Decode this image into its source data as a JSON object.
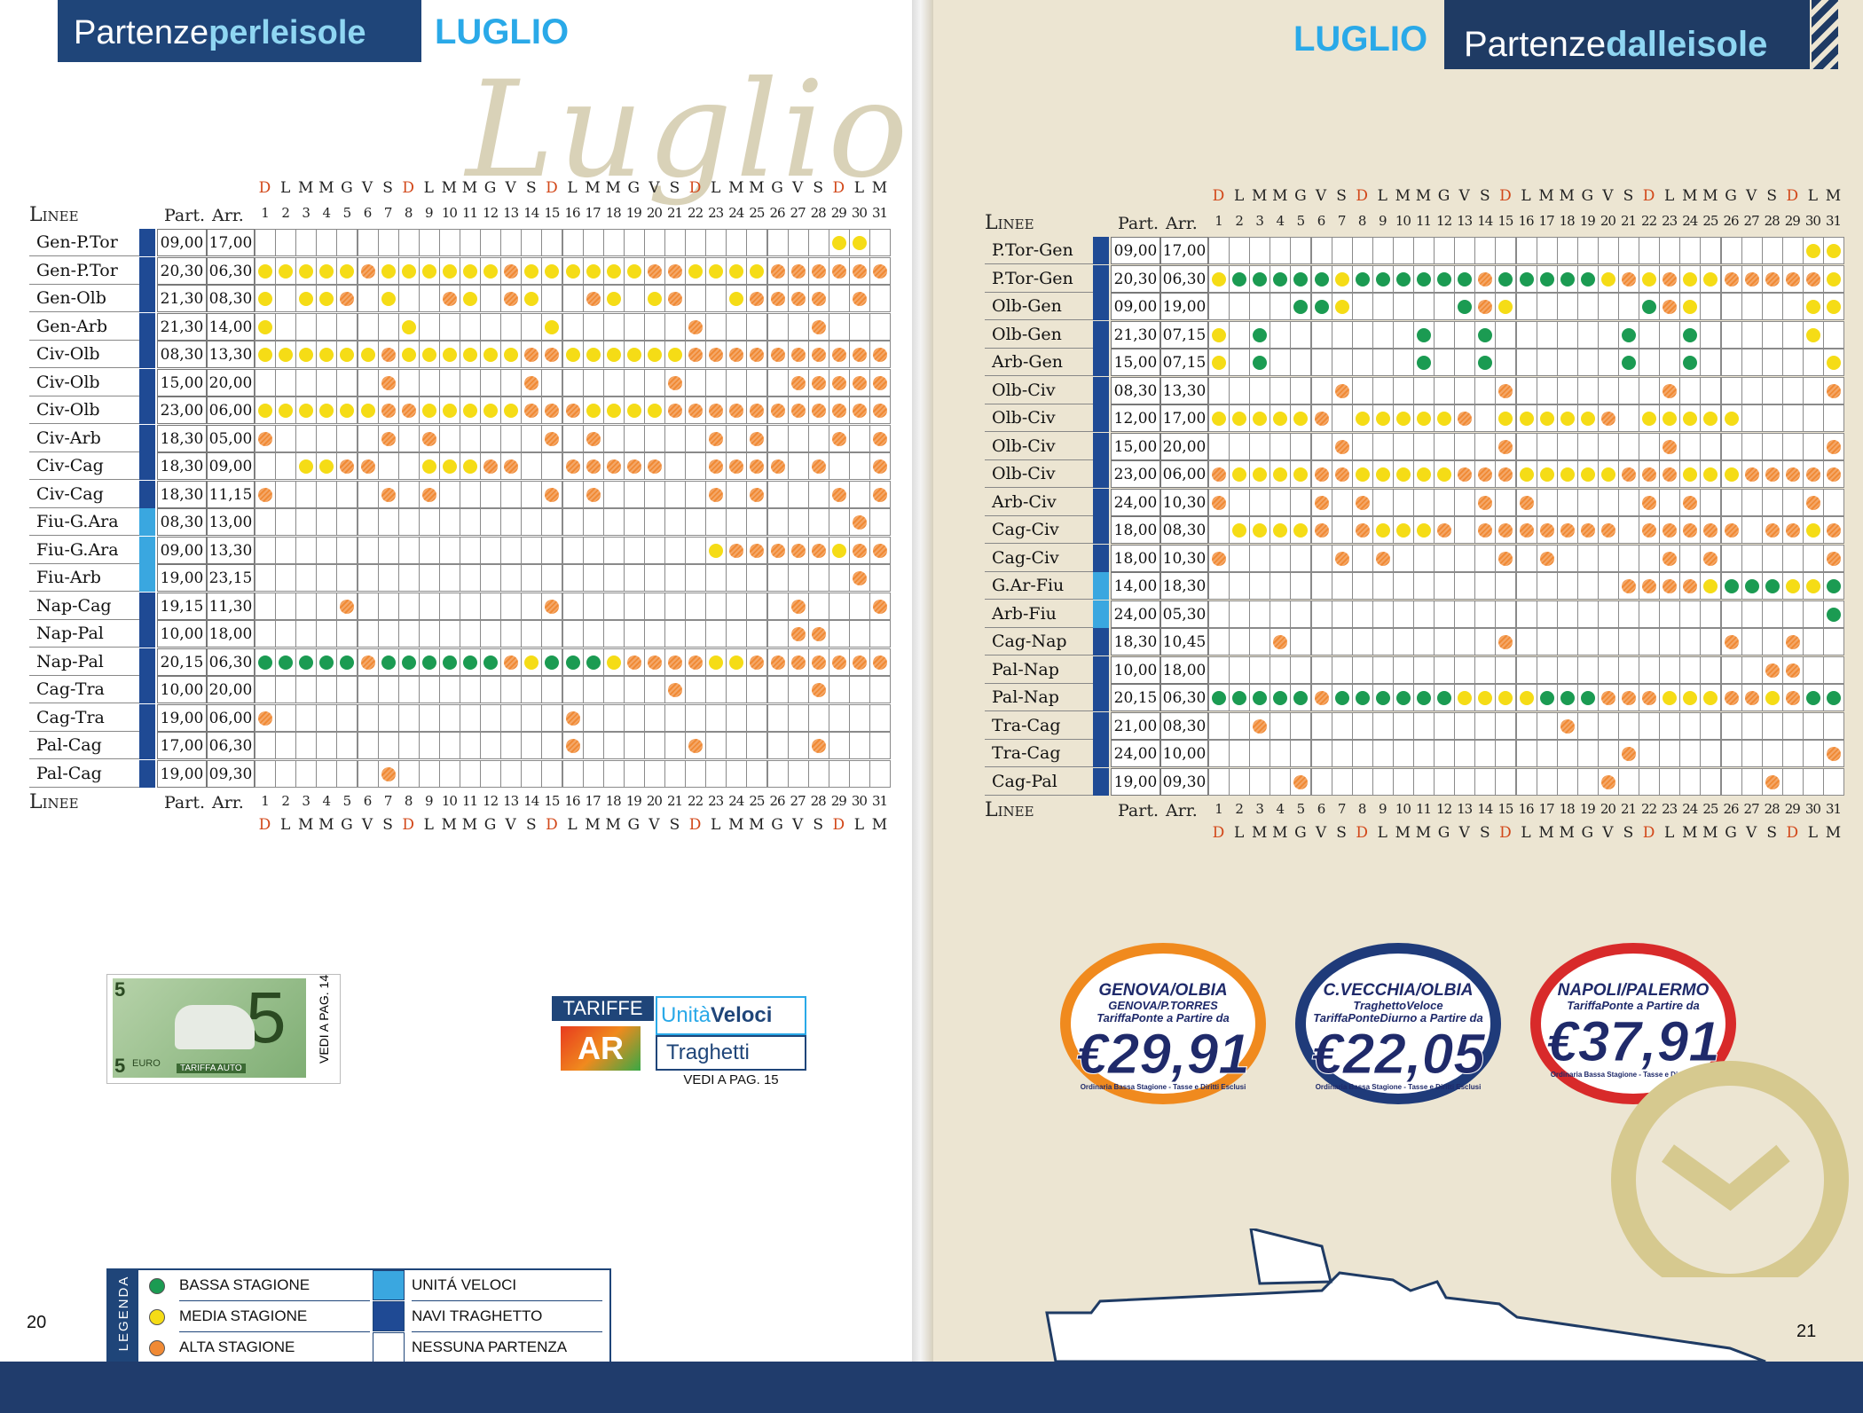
{
  "left": {
    "header_pre": "Partenze",
    "header_bold": "perleisole",
    "month": "LUGLIO",
    "script_word": "Luglio",
    "page_number": "20",
    "lines_label": "Linee",
    "part_label": "Part.",
    "arr_label": "Arr.",
    "rows": [
      {
        "name": "Gen-P.Tor",
        "part": "09,00",
        "arr": "17,00",
        "bar": "#1f4a94",
        "dots": ".........................................................YY..........................................................................................................................................................................................................................."
      },
      {
        "name": "Gen-P.Tor",
        "part": "20,30",
        "arr": "06,30",
        "bar": "#1f4a94"
      },
      {
        "name": "Gen-Olb",
        "part": "21,30",
        "arr": "08,30",
        "bar": "#1f4a94"
      },
      {
        "name": "Gen-Arb",
        "part": "21,30",
        "arr": "14,00",
        "bar": "#1f4a94"
      },
      {
        "name": "Civ-Olb",
        "part": "08,30",
        "arr": "13,30",
        "bar": "#1f4a94"
      },
      {
        "name": "Civ-Olb",
        "part": "15,00",
        "arr": "20,00",
        "bar": "#1f4a94"
      },
      {
        "name": "Civ-Olb",
        "part": "23,00",
        "arr": "06,00",
        "bar": "#1f4a94"
      },
      {
        "name": "Civ-Arb",
        "part": "18,30",
        "arr": "05,00",
        "bar": "#1f4a94"
      },
      {
        "name": "Civ-Cag",
        "part": "18,30",
        "arr": "09,00",
        "bar": "#1f4a94"
      },
      {
        "name": "Civ-Cag",
        "part": "18,30",
        "arr": "11,15",
        "bar": "#1f4a94"
      },
      {
        "name": "Fiu-G.Ara",
        "part": "08,30",
        "arr": "13,00",
        "bar": "#3aa7e0"
      },
      {
        "name": "Fiu-G.Ara",
        "part": "09,00",
        "arr": "13,30",
        "bar": "#3aa7e0"
      },
      {
        "name": "Fiu-Arb",
        "part": "19,00",
        "arr": "23,15",
        "bar": "#3aa7e0"
      },
      {
        "name": "Nap-Cag",
        "part": "19,15",
        "arr": "11,30",
        "bar": "#1f4a94"
      },
      {
        "name": "Nap-Pal",
        "part": "10,00",
        "arr": "18,00",
        "bar": "#1f4a94"
      },
      {
        "name": "Nap-Pal",
        "part": "20,15",
        "arr": "06,30",
        "bar": "#1f4a94"
      },
      {
        "name": "Cag-Tra",
        "part": "10,00",
        "arr": "20,00",
        "bar": "#1f4a94"
      },
      {
        "name": "Cag-Tra",
        "part": "19,00",
        "arr": "06,00",
        "bar": "#1f4a94"
      },
      {
        "name": "Pal-Cag",
        "part": "17,00",
        "arr": "06,30",
        "bar": "#1f4a94"
      },
      {
        "name": "Pal-Cag",
        "part": "19,00",
        "arr": "09,30",
        "bar": "#1f4a94"
      }
    ],
    "schedule": [
      ".....................................................................................................................YY..",
      "YYYYYOYYYYYYOYYYYYYOOYYYYOOOOO",
      "Y.YYO.Y..OY.OY..OY.YO..YOOOO..",
      "Y...Y....Y....Y....O.....O...."
    ]
  },
  "right": {
    "header_pre": "Partenze",
    "header_bold": "dalleisole",
    "month": "LUGLIO",
    "page_number": "21",
    "lines_label": "Linee",
    "part_label": "Part.",
    "arr_label": "Arr.",
    "rows": [
      {
        "name": "P.Tor-Gen",
        "part": "09,00",
        "arr": "17,00",
        "bar": "#1f4a94"
      },
      {
        "name": "P.Tor-Gen",
        "part": "20,30",
        "arr": "06,30",
        "bar": "#1f4a94"
      },
      {
        "name": "Olb-Gen",
        "part": "09,00",
        "arr": "19,00",
        "bar": "#1f4a94"
      },
      {
        "name": "Olb-Gen",
        "part": "21,30",
        "arr": "07,15",
        "bar": "#1f4a94"
      },
      {
        "name": "Arb-Gen",
        "part": "15,00",
        "arr": "07,15",
        "bar": "#1f4a94"
      },
      {
        "name": "Olb-Civ",
        "part": "08,30",
        "arr": "13,30",
        "bar": "#1f4a94"
      },
      {
        "name": "Olb-Civ",
        "part": "12,00",
        "arr": "17,00",
        "bar": "#1f4a94"
      },
      {
        "name": "Olb-Civ",
        "part": "15,00",
        "arr": "20,00",
        "bar": "#1f4a94"
      },
      {
        "name": "Olb-Civ",
        "part": "23,00",
        "arr": "06,00",
        "bar": "#1f4a94"
      },
      {
        "name": "Arb-Civ",
        "part": "24,00",
        "arr": "10,30",
        "bar": "#1f4a94"
      },
      {
        "name": "Cag-Civ",
        "part": "18,00",
        "arr": "08,30",
        "bar": "#1f4a94"
      },
      {
        "name": "Cag-Civ",
        "part": "18,00",
        "arr": "10,30",
        "bar": "#1f4a94"
      },
      {
        "name": "G.Ar-Fiu",
        "part": "14,00",
        "arr": "18,30",
        "bar": "#3aa7e0"
      },
      {
        "name": "Arb-Fiu",
        "part": "24,00",
        "arr": "05,30",
        "bar": "#3aa7e0"
      },
      {
        "name": "Cag-Nap",
        "part": "18,30",
        "arr": "10,45",
        "bar": "#1f4a94"
      },
      {
        "name": "Pal-Nap",
        "part": "10,00",
        "arr": "18,00",
        "bar": "#1f4a94"
      },
      {
        "name": "Pal-Nap",
        "part": "20,15",
        "arr": "06,30",
        "bar": "#1f4a94"
      },
      {
        "name": "Tra-Cag",
        "part": "21,00",
        "arr": "08,30",
        "bar": "#1f4a94"
      },
      {
        "name": "Tra-Cag",
        "part": "24,00",
        "arr": "10,00",
        "bar": "#1f4a94"
      },
      {
        "name": "Cag-Pal",
        "part": "19,00",
        "arr": "09,30",
        "bar": "#1f4a94"
      }
    ]
  },
  "day_letters": [
    "D",
    "L",
    "M",
    "M",
    "G",
    "V",
    "S",
    "D",
    "L",
    "M",
    "M",
    "G",
    "V",
    "S",
    "D",
    "L",
    "M",
    "M",
    "G",
    "V",
    "S",
    "D",
    "L",
    "M",
    "M",
    "G",
    "V",
    "S",
    "D",
    "L",
    "M"
  ],
  "left_schedule": [
    "............................YY.",
    "YYYYYOYYYYYYOYYYYYYOOYYYYOOOOOO",
    "Y.YYO.Y..OY.OY..OY.YO..YOOOO.O.",
    "Y......Y......Y......O.....O...",
    "YYYYYYOYYYYYYOOYYYYYYOOOOOOOOOO",
    "......O......O......O.....OOOOO",
    "YYYYYYOOYYYYYOOOYYYYOOOOOOOOOOO",
    "O.....O.O.....O.O.....O.O...O.O",
    "..YYOO..YYYOO..OOOOO..OOOO.O..O",
    "O.....O.O.....O.O.....O.O...O.O",
    ".............................O.",
    "......................YOOOOOYOOO",
    ".............................O.",
    "....O.........O...........O...O..",
    "..........................OO.....",
    "GGGGGOGGGGGGOYGGGYOOOOYYOOOOOOO",
    "....................O......O...",
    "O..............O...............",
    "...............O.....O.....O...",
    "......O........................"
  ],
  "right_schedule": [
    ".............................YY.",
    "YGGGGGYGGGGGGOGGGGGYOYOYYOOOOOYY",
    "....GGY.....GOY......GOY.....YYO",
    "Y.G.......G..G......G..G.....Y..",
    "Y.G.......G..G......G..G......Y",
    "......O.......O.......O.......OOO",
    "YYYYYO.YYYYYO.YYYYYO.YYYYY.....",
    "......O.......O.......O.......OOOO",
    "OYYYYOOYYYYYOOOYYYYYOOOYYYOOOOO",
    "O....O.O.....O.O.....O.O.....O.O",
    ".YYYYO.OYYYO.OOOOOOO.OOOOO.OOYO",
    "O.....O.O.....O.O.....O.O.....O",
    "....................OOOOYGGGYYGO",
    "..............................G.",
    "...O..........O..........O..O...O",
    "...........................OO..",
    "GGGGGOGGGGGGYYYYGGGOOOYYYOOYOGG",
    "..O..............O.............",
    "....................O.........O.",
    "....O..............O.......O...."
  ],
  "legend": {
    "title": "LEGENDA",
    "items": [
      {
        "label": "BASSA STAGIONE",
        "sym": "green"
      },
      {
        "label": "MEDIA STAGIONE",
        "sym": "yellow"
      },
      {
        "label": "ALTA STAGIONE",
        "sym": "orange"
      },
      {
        "label": "UNITÁ VELOCI",
        "sym": "lightblue"
      },
      {
        "label": "NAVI TRAGHETTO",
        "sym": "darkblue"
      },
      {
        "label": "NESSUNA PARTENZA",
        "sym": "white"
      }
    ]
  },
  "ads": {
    "ticket_number": "5",
    "ticket_euro": "EURO",
    "ticket_title": "TARIFFA AUTO",
    "ticket_side": "VEDI A PAG. 14",
    "tariffe_title": "TARIFFE",
    "tariffe_ar": "AR",
    "tariffe_uv1": "Unità",
    "tariffe_uv2": "Veloci",
    "tariffe_tr": "Traghetti",
    "tariffe_side": "VEDI A PAG. 15"
  },
  "badges": [
    {
      "route1": "GENOVA/OLBIA",
      "route2": "GENOVA/P.TORRES",
      "sub": "TariffaPonte a Partire da",
      "price": "€29,91",
      "fine": "Ordinaria Bassa Stagione - Tasse e Diritti Esclusi",
      "ring": "#f08a1e"
    },
    {
      "route1": "C.VECCHIA/OLBIA",
      "route2": "TraghettoVeloce",
      "sub": "TariffaPonteDiurno a Partire da",
      "price": "€22,05",
      "fine": "Ordinaria Bassa Stagione - Tasse e Diritti Esclusi",
      "ring": "#1f3b7a"
    },
    {
      "route1": "NAPOLI/PALERMO",
      "route2": "",
      "sub": "TariffaPonte a Partire da",
      "price": "€37,91",
      "fine": "Ordinaria Bassa Stagione - Tasse e Diritti Esclusi",
      "ring": "#d82a2a"
    }
  ]
}
